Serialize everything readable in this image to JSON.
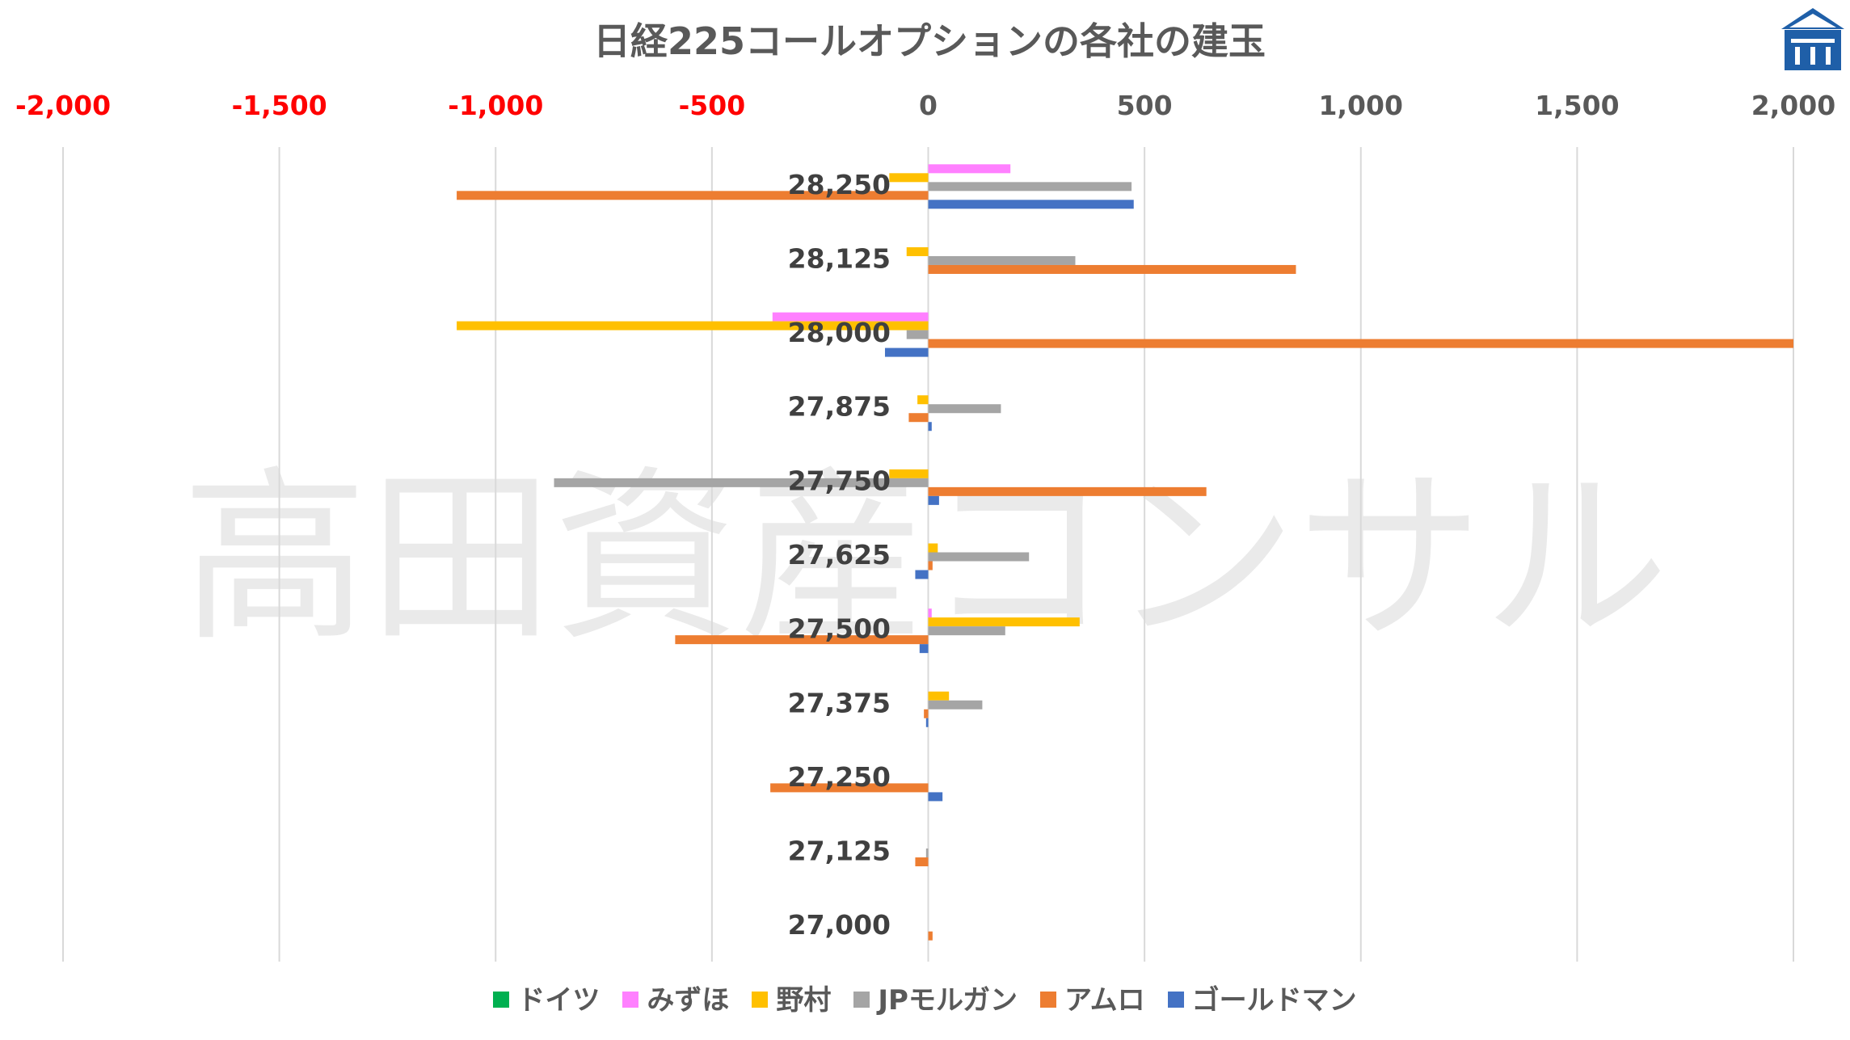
{
  "chart_data": {
    "type": "bar",
    "orientation": "horizontal",
    "title": "日経225コールオプションの各社の建玉",
    "watermark": "高田資産コンサル",
    "xlim": [
      -2000,
      2000
    ],
    "xticks": [
      -2000,
      -1500,
      -1000,
      -500,
      0,
      500,
      1000,
      1500,
      2000
    ],
    "xtick_labels": [
      "-2,000",
      "-1,500",
      "-1,000",
      "-500",
      "0",
      "500",
      "1,000",
      "1,500",
      "2,000"
    ],
    "negative_tick_color": "#ff0000",
    "positive_tick_color": "#595959",
    "categories": [
      "28,250",
      "28,125",
      "28,000",
      "27,875",
      "27,750",
      "27,625",
      "27,500",
      "27,375",
      "27,250",
      "27,125",
      "27,000"
    ],
    "grid": true,
    "legend_position": "bottom",
    "series": [
      {
        "name": "ドイツ",
        "color": "#00b050",
        "values": [
          0,
          0,
          0,
          0,
          0,
          0,
          0,
          0,
          0,
          0,
          0
        ]
      },
      {
        "name": "みずほ",
        "color": "#ff80ff",
        "values": [
          190,
          0,
          -360,
          0,
          0,
          0,
          8,
          0,
          0,
          0,
          0
        ]
      },
      {
        "name": "野村",
        "color": "#ffc000",
        "values": [
          -90,
          -50,
          -1090,
          -25,
          -90,
          22,
          350,
          48,
          0,
          0,
          0
        ]
      },
      {
        "name": "JPモルガン",
        "color": "#a5a5a5",
        "values": [
          470,
          340,
          -50,
          168,
          -865,
          233,
          178,
          125,
          0,
          -5,
          0
        ]
      },
      {
        "name": "アムロ",
        "color": "#ed7d31",
        "values": [
          -1090,
          850,
          2000,
          -45,
          643,
          10,
          -585,
          -10,
          -365,
          -30,
          10
        ]
      },
      {
        "name": "ゴールドマン",
        "color": "#4472c4",
        "values": [
          475,
          0,
          -100,
          8,
          25,
          -30,
          -20,
          -5,
          33,
          0,
          0
        ]
      }
    ]
  }
}
